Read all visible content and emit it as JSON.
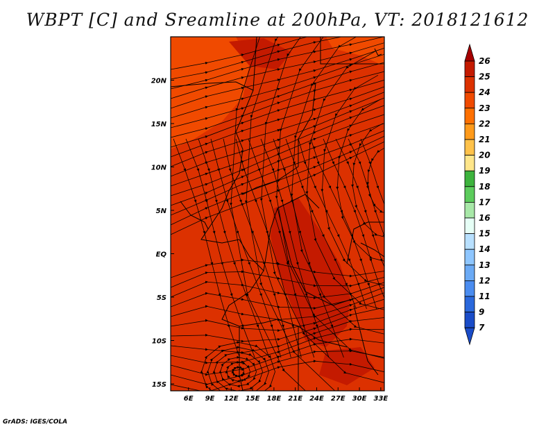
{
  "title": "WBPT [C] and Sreamline at 200hPa, VT: 2018121612",
  "credit": "GrADS: IGES/COLA",
  "chart_data": {
    "type": "heatmap",
    "title": "WBPT [C] and Sreamline at 200hPa, VT: 2018121612",
    "x_ticks": [
      "6E",
      "9E",
      "12E",
      "15E",
      "18E",
      "21E",
      "24E",
      "27E",
      "30E",
      "33E"
    ],
    "x_values": [
      6,
      9,
      12,
      15,
      18,
      21,
      24,
      27,
      30,
      33
    ],
    "y_ticks": [
      "20N",
      "15N",
      "10N",
      "5N",
      "EQ",
      "5S",
      "10S",
      "15S"
    ],
    "y_values": [
      20,
      15,
      10,
      5,
      0,
      -5,
      -10,
      -15
    ],
    "xlim": [
      3.5,
      33.5
    ],
    "ylim": [
      -15.8,
      25
    ],
    "colorbar": {
      "labels": [
        "26",
        "25",
        "24",
        "23",
        "22",
        "21",
        "20",
        "19",
        "18",
        "17",
        "16",
        "15",
        "14",
        "13",
        "12",
        "11",
        "9",
        "7"
      ],
      "colors": [
        "#a60000",
        "#c41a00",
        "#dc3100",
        "#f04a00",
        "#ff7000",
        "#ff9a1a",
        "#ffc24a",
        "#ffe68a",
        "#3db33d",
        "#5ccc5c",
        "#a8e8a8",
        "#e6fff6",
        "#b8e0ff",
        "#8ec6ff",
        "#6baaf5",
        "#4a8cf0",
        "#2a68dc",
        "#1a4cc8"
      ]
    },
    "field_regions": [
      {
        "name": "northwest-lower",
        "level": "23"
      },
      {
        "name": "background",
        "level": "24"
      },
      {
        "name": "central-core",
        "level": "25"
      }
    ]
  }
}
